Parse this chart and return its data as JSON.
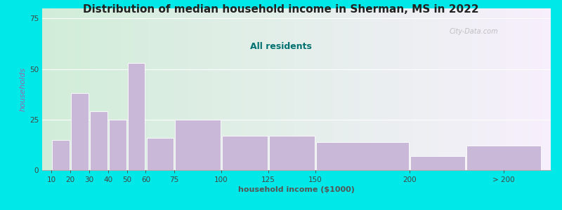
{
  "title": "Distribution of median household income in Sherman, MS in 2022",
  "subtitle": "All residents",
  "xlabel": "household income ($1000)",
  "ylabel": "households",
  "categories": [
    "10",
    "20",
    "30",
    "40",
    "50",
    "60",
    "75",
    "100",
    "125",
    "150",
    "200",
    "> 200"
  ],
  "bar_heights": [
    15,
    38,
    29,
    25,
    53,
    16,
    25,
    17,
    17,
    14,
    7,
    12
  ],
  "bar_color": "#c9b8d8",
  "background_outer": "#00e8e8",
  "title_color": "#222222",
  "subtitle_color": "#007070",
  "ylabel_color": "#9966aa",
  "xlabel_color": "#555555",
  "watermark": "City-Data.com",
  "yticks": [
    0,
    25,
    50,
    75
  ],
  "ylim": [
    0,
    80
  ],
  "bar_positions": [
    10,
    20,
    30,
    40,
    50,
    60,
    75,
    100,
    125,
    150,
    200,
    230
  ],
  "bar_widths": [
    10,
    10,
    10,
    10,
    10,
    15,
    25,
    25,
    25,
    50,
    30,
    40
  ],
  "xlim": [
    5,
    275
  ],
  "x_tick_positions": [
    10,
    20,
    30,
    40,
    50,
    60,
    75,
    100,
    125,
    150,
    200,
    250
  ],
  "title_fontsize": 11,
  "subtitle_fontsize": 9,
  "axis_label_fontsize": 8,
  "tick_fontsize": 7.5
}
